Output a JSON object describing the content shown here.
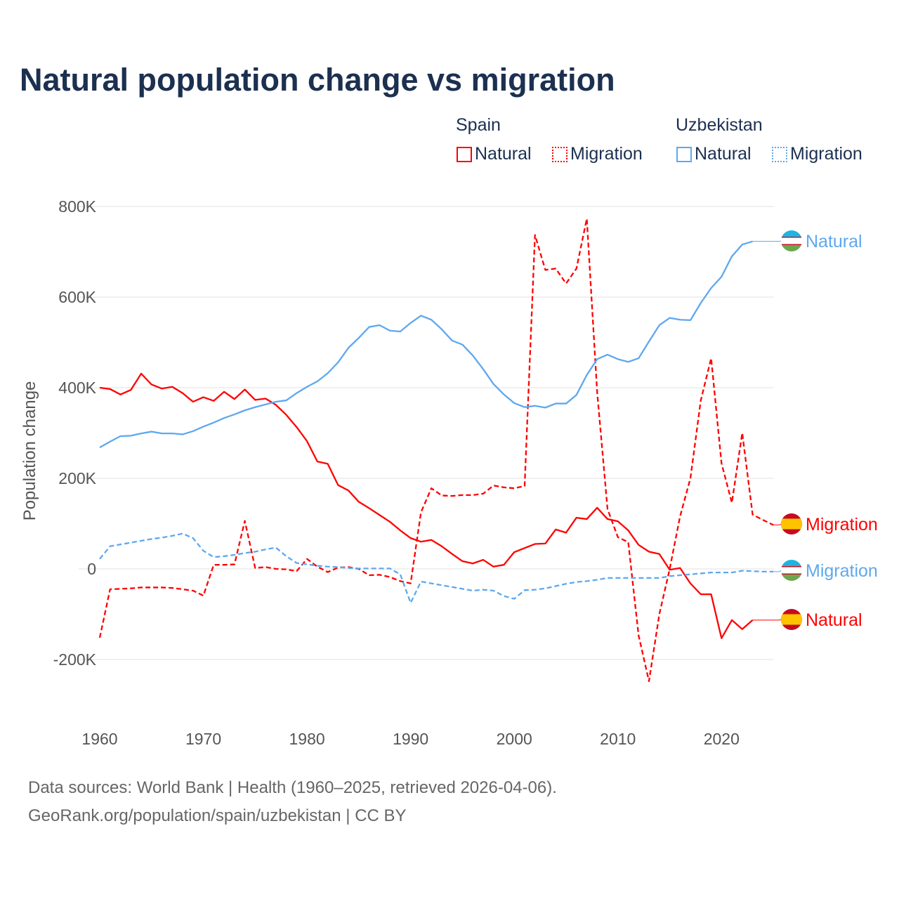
{
  "title": "Natural population change vs migration",
  "legend": {
    "groups": [
      {
        "name": "Spain",
        "items": [
          {
            "label": "Natural",
            "style": "solid"
          },
          {
            "label": "Migration",
            "style": "dotted"
          }
        ],
        "color": "#ff0000"
      },
      {
        "name": "Uzbekistan",
        "items": [
          {
            "label": "Natural",
            "style": "solid"
          },
          {
            "label": "Migration",
            "style": "dotted"
          }
        ],
        "color": "#5ea8ef"
      }
    ]
  },
  "footer": {
    "line1": "Data sources: World Bank | Health (1960–2025, retrieved 2026-04-06).",
    "line2": "GeoRank.org/population/spain/uzbekistan | CC BY"
  },
  "chart_data": {
    "type": "line",
    "title": "Natural population change vs migration",
    "xlabel": "",
    "ylabel": "Population change",
    "xlim": [
      1960,
      2025
    ],
    "ylim": [
      -300000,
      800000
    ],
    "yticks": [
      {
        "v": 800000,
        "label": "800K"
      },
      {
        "v": 600000,
        "label": "600K"
      },
      {
        "v": 400000,
        "label": "400K"
      },
      {
        "v": 200000,
        "label": "200K"
      },
      {
        "v": 0,
        "label": "0"
      },
      {
        "v": -200000,
        "label": "-200K"
      }
    ],
    "xticks": [
      {
        "v": 1960,
        "label": "1960"
      },
      {
        "v": 1970,
        "label": "1970"
      },
      {
        "v": 1980,
        "label": "1980"
      },
      {
        "v": 1990,
        "label": "1990"
      },
      {
        "v": 2000,
        "label": "2000"
      },
      {
        "v": 2010,
        "label": "2010"
      },
      {
        "v": 2020,
        "label": "2020"
      }
    ],
    "grid": true,
    "x_start": 1960,
    "series": [
      {
        "name": "Spain Natural",
        "country": "Spain",
        "end_label": "Natural",
        "color": "#ff0000",
        "dash": false,
        "values_k": [
          400,
          397,
          385,
          395,
          431,
          407,
          398,
          402,
          388,
          369,
          379,
          371,
          391,
          375,
          396,
          373,
          376,
          362,
          340,
          313,
          282,
          237,
          232,
          185,
          173,
          148,
          134,
          119,
          104,
          85,
          68,
          60,
          64,
          50,
          33,
          17,
          12,
          20,
          5,
          9,
          37,
          46,
          55,
          56,
          87,
          80,
          113,
          110,
          135,
          110,
          105,
          85,
          53,
          38,
          33,
          -2,
          2,
          -32,
          -56,
          -56,
          -153,
          -113,
          -133,
          -113
        ]
      },
      {
        "name": "Spain Migration",
        "country": "Spain",
        "end_label": "Migration",
        "color": "#ff0000",
        "dash": true,
        "values_k": [
          -152,
          -45,
          -44,
          -43,
          -41,
          -41,
          -41,
          -42,
          -45,
          -48,
          -59,
          9,
          9,
          10,
          106,
          2,
          4,
          0,
          -1,
          -5,
          22,
          5,
          -7,
          3,
          4,
          0,
          -14,
          -13,
          -18,
          -27,
          -32,
          125,
          178,
          162,
          161,
          163,
          163,
          166,
          184,
          180,
          178,
          183,
          737,
          660,
          663,
          630,
          663,
          773,
          390,
          132,
          70,
          59,
          -147,
          -248,
          -100,
          0,
          116,
          200,
          372,
          465,
          233,
          146,
          300,
          120,
          108,
          97
        ]
      },
      {
        "name": "Uzbekistan Natural",
        "country": "Uzbekistan",
        "end_label": "Natural",
        "color": "#5ea8ef",
        "dash": false,
        "values_k": [
          268,
          281,
          293,
          294,
          299,
          303,
          299,
          299,
          297,
          304,
          314,
          323,
          333,
          341,
          350,
          357,
          363,
          369,
          372,
          388,
          402,
          414,
          432,
          456,
          488,
          510,
          534,
          538,
          526,
          524,
          543,
          559,
          550,
          529,
          504,
          495,
          471,
          441,
          408,
          385,
          366,
          357,
          360,
          356,
          365,
          365,
          384,
          428,
          463,
          473,
          463,
          457,
          465,
          502,
          538,
          554,
          550,
          549,
          587,
          620,
          645,
          690,
          716,
          723
        ]
      },
      {
        "name": "Uzbekistan Migration",
        "country": "Uzbekistan",
        "end_label": "Migration",
        "color": "#5ea8ef",
        "dash": true,
        "values_k": [
          22,
          50,
          54,
          58,
          62,
          66,
          69,
          73,
          78,
          68,
          40,
          26,
          28,
          31,
          35,
          38,
          43,
          47,
          28,
          13,
          10,
          7,
          5,
          4,
          2,
          1,
          1,
          1,
          1,
          -12,
          -75,
          -28,
          -32,
          -36,
          -40,
          -44,
          -48,
          -46,
          -48,
          -60,
          -66,
          -47,
          -46,
          -43,
          -38,
          -33,
          -29,
          -27,
          -24,
          -20,
          -20,
          -20,
          -20,
          -20,
          -20,
          -16,
          -14,
          -12,
          -10,
          -8,
          -8,
          -8,
          -4,
          -5,
          -6,
          -6
        ]
      }
    ]
  }
}
